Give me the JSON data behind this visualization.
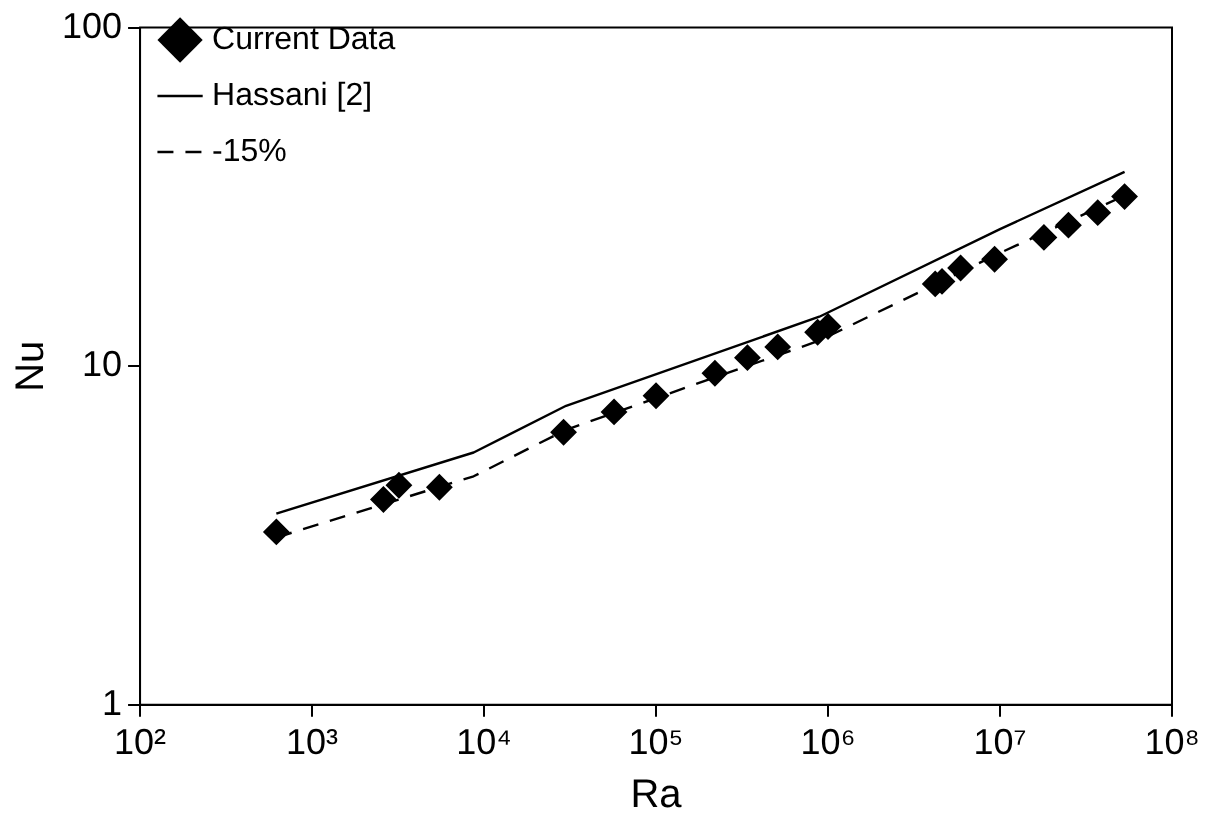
{
  "chart_data": {
    "type": "scatter",
    "xlabel": "Ra",
    "ylabel": "Nu",
    "log": "xy",
    "xlim": [
      100,
      100000000
    ],
    "ylim": [
      1,
      100
    ],
    "xticks": [
      {
        "value": 100,
        "label": "10²"
      },
      {
        "value": 1000,
        "label": "10³"
      },
      {
        "value": 10000,
        "label": "10⁴"
      },
      {
        "value": 100000,
        "label": "10⁵"
      },
      {
        "value": 1000000,
        "label": "10⁶"
      },
      {
        "value": 10000000,
        "label": "10⁷"
      },
      {
        "value": 100000000,
        "label": "10⁸"
      }
    ],
    "yticks": [
      1,
      10,
      100
    ],
    "grid": false,
    "legend": "top left",
    "series": [
      {
        "name": "Current Data",
        "type": "scatter",
        "marker": "diamond",
        "color": "#000000",
        "x": [
          620,
          2600,
          3200,
          5500,
          29000,
          57000,
          100000,
          220000,
          340000,
          510000,
          870000,
          1000000,
          4200000,
          4600000,
          5900000,
          9300000,
          18000000,
          25000000,
          37000000,
          53000000
        ],
        "values": [
          3.24,
          4.04,
          4.45,
          4.39,
          6.38,
          7.33,
          8.18,
          9.53,
          10.6,
          11.4,
          12.6,
          13.1,
          17.5,
          17.8,
          19.5,
          20.7,
          24.0,
          26.1,
          28.4,
          31.7
        ]
      },
      {
        "name": "Hassani [2]",
        "type": "line",
        "line_style": "solid",
        "marker": "none",
        "color": "#000000",
        "x": [
          620,
          8700,
          30000,
          890000,
          10000000,
          53000000
        ],
        "values": [
          3.67,
          5.56,
          7.64,
          14.0,
          25.4,
          37.5
        ]
      },
      {
        "name": "-15%",
        "type": "line",
        "line_style": "dashed",
        "marker": "none",
        "color": "#000000",
        "x": [
          620,
          8700,
          30000,
          890000,
          10000000,
          53000000
        ],
        "values": [
          3.12,
          4.73,
          6.49,
          11.9,
          21.6,
          31.9
        ]
      }
    ]
  }
}
